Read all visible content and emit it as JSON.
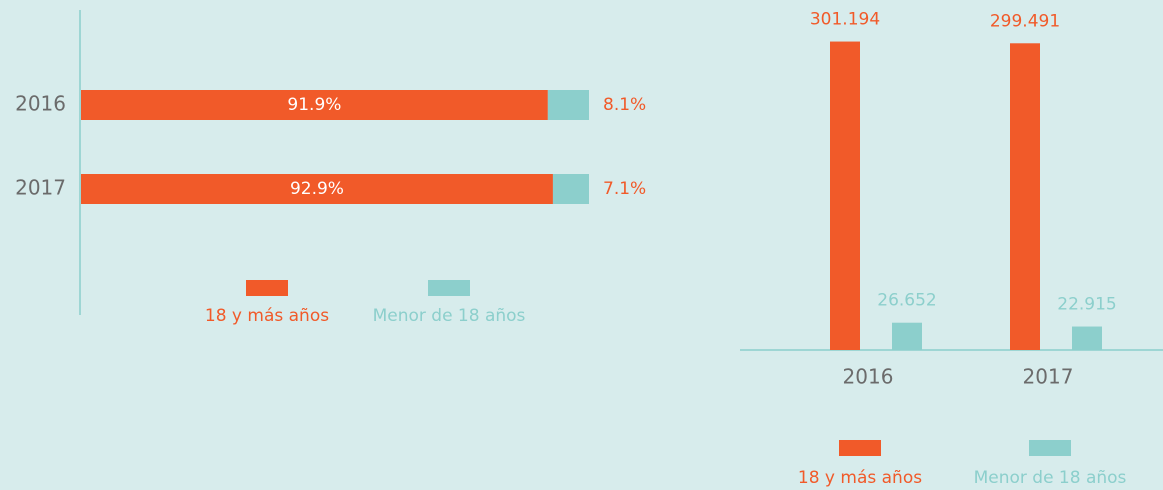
{
  "chart_data": [
    {
      "type": "bar",
      "orientation": "horizontal",
      "stacked": true,
      "categories": [
        "2016",
        "2017"
      ],
      "series": [
        {
          "name": "18 y más años",
          "color": "#f15a29",
          "values": [
            91.9,
            92.9
          ],
          "value_labels": [
            "91.9%",
            "92.9%"
          ]
        },
        {
          "name": "Menor de 18 años",
          "color": "#8ccfcc",
          "values": [
            8.1,
            7.1
          ],
          "value_labels": [
            "8.1%",
            "7.1%"
          ]
        }
      ],
      "xlim": [
        0,
        100
      ]
    },
    {
      "type": "bar",
      "orientation": "vertical",
      "categories": [
        "2016",
        "2017"
      ],
      "series": [
        {
          "name": "18 y más años",
          "color": "#f15a29",
          "values": [
            301194,
            299491
          ],
          "value_labels": [
            "301.194",
            "299.491"
          ]
        },
        {
          "name": "Menor de 18 años",
          "color": "#8ccfcc",
          "values": [
            26652,
            22915
          ],
          "value_labels": [
            "26.652",
            "22.915"
          ]
        }
      ],
      "ylim": [
        0,
        332000
      ]
    }
  ]
}
